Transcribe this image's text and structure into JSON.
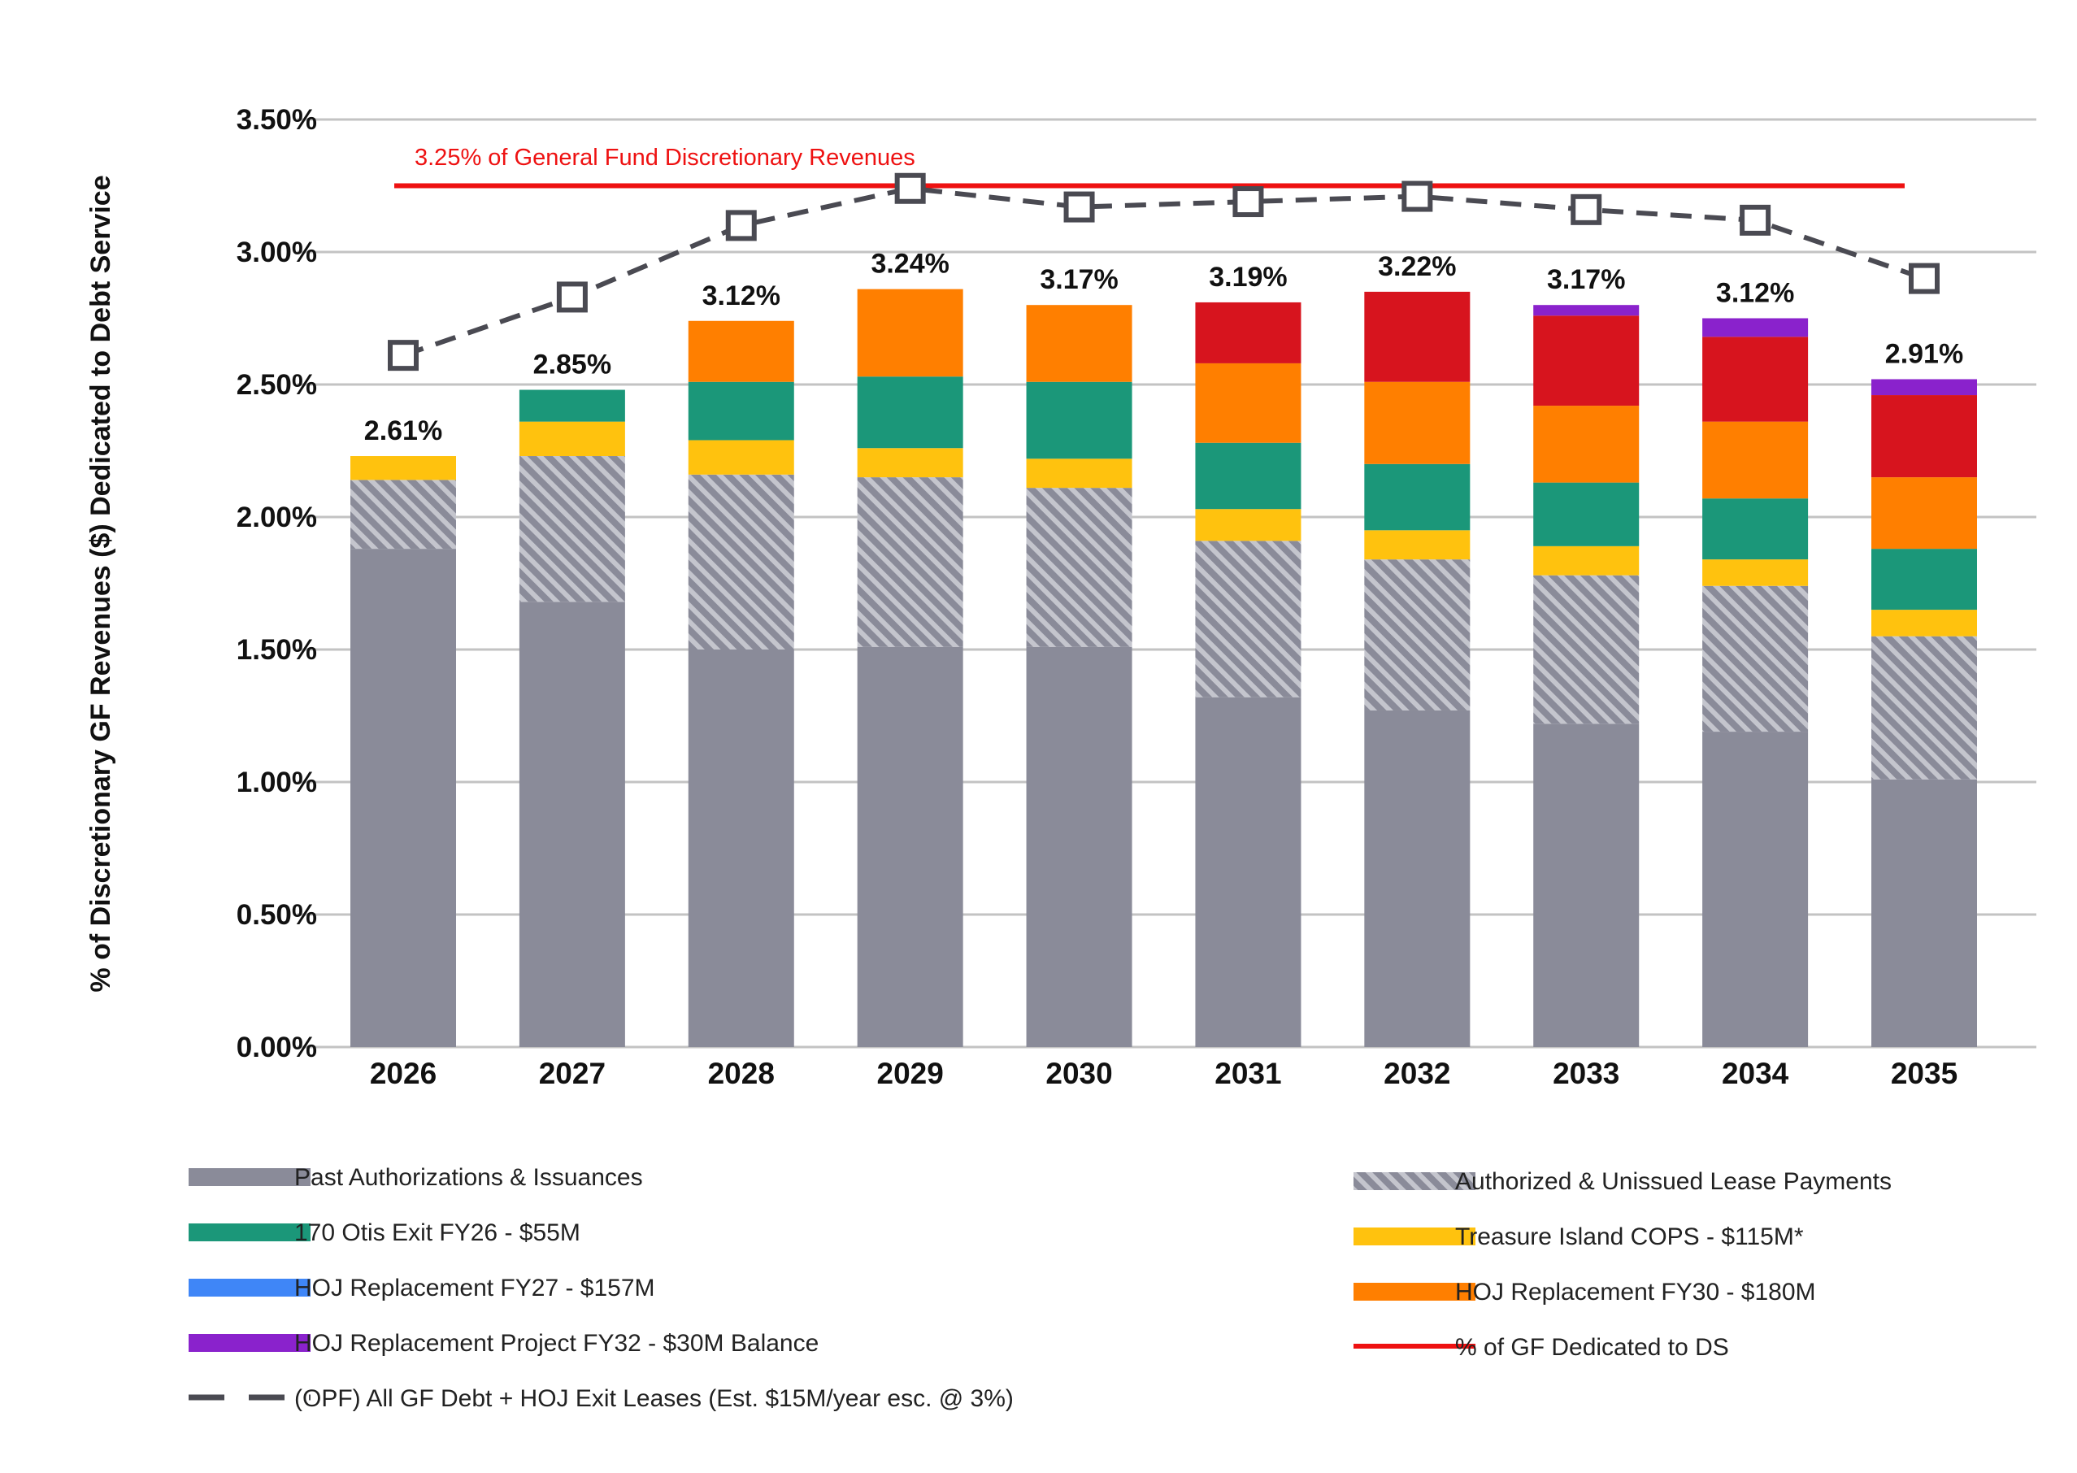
{
  "chart_data": {
    "type": "bar",
    "stacked": true,
    "ylabel": "% of Discretionary GF Revenues ($) Dedicated to Debt Service",
    "ylim": [
      0,
      3.5
    ],
    "yticks": [
      "0.00%",
      "0.50%",
      "1.00%",
      "1.50%",
      "2.00%",
      "2.50%",
      "3.00%",
      "3.50%"
    ],
    "grid": true,
    "categories": [
      "2026",
      "2027",
      "2028",
      "2029",
      "2030",
      "2031",
      "2032",
      "2033",
      "2034",
      "2035"
    ],
    "series": [
      {
        "key": "past",
        "name": "Past Authorizations & Issuances",
        "color": "#8a8b99",
        "pattern": "solid",
        "values": [
          1.88,
          1.68,
          1.5,
          1.51,
          1.51,
          1.32,
          1.27,
          1.22,
          1.19,
          1.01
        ]
      },
      {
        "key": "unissued",
        "name": "Authorized & Unissued Lease Payments",
        "color": "#a3a4b0",
        "pattern": "hatch",
        "values": [
          0.26,
          0.55,
          0.66,
          0.64,
          0.6,
          0.59,
          0.57,
          0.56,
          0.55,
          0.54
        ]
      },
      {
        "key": "ti",
        "name": "Treasure Island COPS - $115M*",
        "color": "#ffc20e",
        "pattern": "solid",
        "values": [
          0.09,
          0.13,
          0.13,
          0.11,
          0.11,
          0.12,
          0.11,
          0.11,
          0.1,
          0.1
        ]
      },
      {
        "key": "otis",
        "name": "170 Otis Exit FY26 - $55M",
        "color": "#1b9779",
        "pattern": "solid",
        "values": [
          0,
          0.12,
          0.22,
          0.27,
          0.29,
          0.25,
          0.25,
          0.24,
          0.23,
          0.23
        ]
      },
      {
        "key": "hoj27",
        "name": "HOJ Replacement FY27 - $157M",
        "color": "#3f86f7",
        "pattern": "solid",
        "values": [
          0,
          0,
          0,
          0,
          0,
          0,
          0,
          0,
          0,
          0
        ]
      },
      {
        "key": "hoj30",
        "name": "HOJ Replacement FY30 - $180M",
        "color": "#ff7f00",
        "pattern": "solid",
        "values": [
          0,
          0,
          0.23,
          0.33,
          0.29,
          0.3,
          0.31,
          0.29,
          0.29,
          0.27
        ]
      },
      {
        "key": "opfred",
        "name": "",
        "color": "#d7141e",
        "pattern": "solid",
        "values": [
          0,
          0,
          0,
          0,
          0,
          0.23,
          0.34,
          0.34,
          0.32,
          0.31
        ]
      },
      {
        "key": "hoj32",
        "name": "HOJ Replacement Project FY32 - $30M Balance",
        "color": "#8a22cc",
        "pattern": "solid",
        "values": [
          0,
          0,
          0,
          0,
          0,
          0,
          0,
          0.04,
          0.07,
          0.06
        ]
      }
    ],
    "bar_labels": [
      "2.61%",
      "2.85%",
      "3.12%",
      "3.24%",
      "3.17%",
      "3.19%",
      "3.22%",
      "3.17%",
      "3.12%",
      "2.91%"
    ],
    "line_series": {
      "name": "(OPF) All GF Debt + HOJ Exit Leases (Est. $15M/year esc. @ 3%)",
      "color": "#4a4a52",
      "style": "dashed",
      "marker": "square",
      "values": [
        2.61,
        2.83,
        3.1,
        3.24,
        3.17,
        3.19,
        3.21,
        3.16,
        3.12,
        2.9
      ]
    },
    "reference_line": {
      "name": "% of GF Dedicated to DS",
      "value": 3.25,
      "color": "#ee1111",
      "label": "3.25% of General Fund Discretionary Revenues"
    },
    "legend": {
      "left": [
        {
          "key": "past",
          "label": "Past Authorizations & Issuances"
        },
        {
          "key": "otis",
          "label": "170 Otis Exit FY26 - $55M"
        },
        {
          "key": "hoj27",
          "label": "HOJ Replacement FY27 - $157M"
        },
        {
          "key": "hoj32",
          "label": "HOJ Replacement Project FY32 - $30M Balance"
        },
        {
          "key": "line",
          "label": "(OPF) All GF Debt + HOJ Exit Leases (Est. $15M/year esc. @ 3%)"
        }
      ],
      "right": [
        {
          "key": "unissued",
          "label": "Authorized & Unissued Lease Payments"
        },
        {
          "key": "ti",
          "label": "Treasure Island COPS - $115M*"
        },
        {
          "key": "hoj30",
          "label": "HOJ Replacement FY30 - $180M"
        },
        {
          "key": "ref",
          "label": "% of GF Dedicated to DS"
        }
      ]
    }
  }
}
